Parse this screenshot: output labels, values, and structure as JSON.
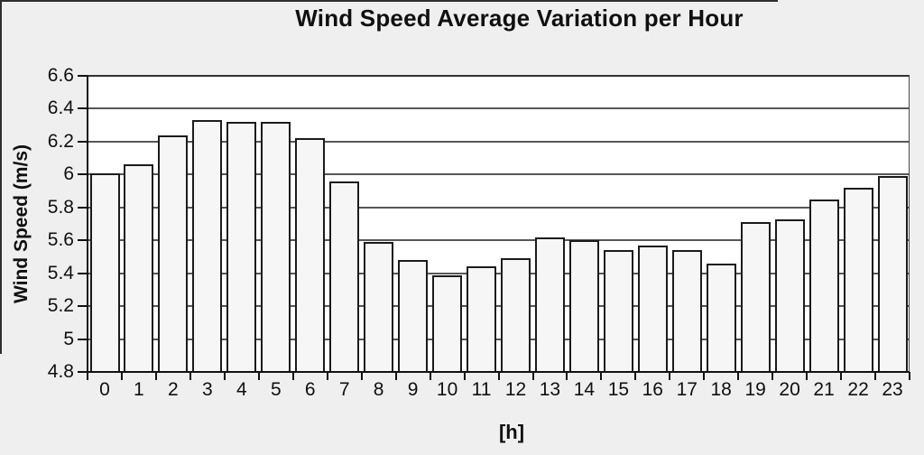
{
  "chart_data": {
    "type": "bar",
    "title": "Wind Speed Average Variation per Hour",
    "xlabel": "[h]",
    "ylabel": "Wind Speed (m/s)",
    "categories": [
      "0",
      "1",
      "2",
      "3",
      "4",
      "5",
      "6",
      "7",
      "8",
      "9",
      "10",
      "11",
      "12",
      "13",
      "14",
      "15",
      "16",
      "17",
      "18",
      "19",
      "20",
      "21",
      "22",
      "23"
    ],
    "values": [
      6.01,
      6.06,
      6.24,
      6.33,
      6.32,
      6.32,
      6.22,
      5.96,
      5.59,
      5.48,
      5.39,
      5.44,
      5.49,
      5.62,
      5.6,
      5.54,
      5.57,
      5.54,
      5.46,
      5.71,
      5.73,
      5.85,
      5.92,
      5.99
    ],
    "ylim": [
      4.8,
      6.6
    ],
    "ytick_step": 0.2,
    "ytick_labels": [
      "4.8",
      "5",
      "5.2",
      "5.4",
      "5.6",
      "5.8",
      "6",
      "6.2",
      "6.4",
      "6.6"
    ],
    "grid": "horizontal",
    "legend": "none",
    "colors": {
      "page_bg": "#efefef",
      "plot_bg": "#ffffff",
      "bar_fill": "#f6f6f6",
      "bar_border": "#1b1b1b",
      "gridline": "#575757",
      "axis": "#111111",
      "text": "#101010"
    }
  }
}
